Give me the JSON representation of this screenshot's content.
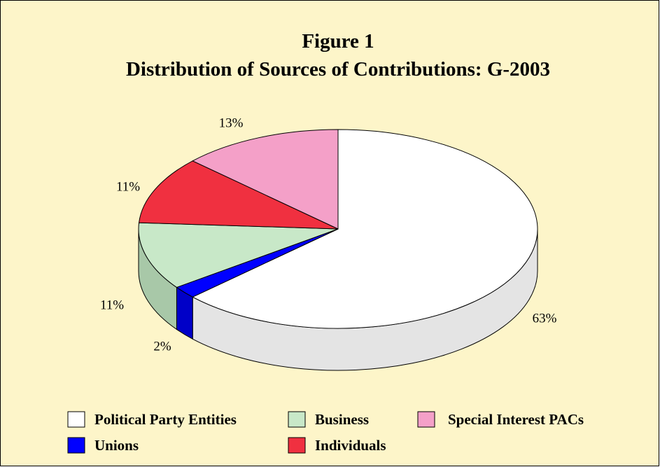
{
  "chart_data": {
    "type": "pie3d",
    "title": "Figure 1",
    "subtitle": "Distribution of Sources of Contributions: G-2003",
    "categories": [
      "Political Party Entities",
      "Unions",
      "Business",
      "Individuals",
      "Special Interest PACs"
    ],
    "values": [
      63,
      2,
      11,
      11,
      13
    ],
    "value_labels": [
      "63%",
      "2%",
      "11%",
      "11%",
      "13%"
    ],
    "colors": [
      "#ffffff",
      "#0000ff",
      "#c8e8c8",
      "#f03040",
      "#f4a0c8"
    ],
    "side_colors": [
      "#e4e4e4",
      "#0000c8",
      "#a8c8a8",
      "#c02030",
      "#d080a8"
    ],
    "background": "#fdf5c9"
  }
}
